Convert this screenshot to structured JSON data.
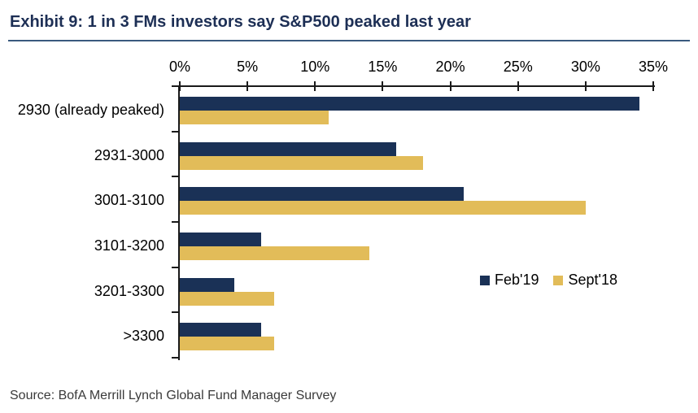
{
  "title": "Exhibit 9: 1 in 3 FMs investors say S&P500 peaked last year",
  "source": "Source: BofA Merrill Lynch Global Fund Manager Survey",
  "colors": {
    "feb19_navy": "#1A3156",
    "sept18_gold": "#E2BC59",
    "title_navy": "#1D2F55",
    "title_rule_blue": "#3A5A7E",
    "axis_black": "#1A1A1A"
  },
  "chart_data": {
    "type": "bar",
    "orientation": "horizontal",
    "title": "Exhibit 9: 1 in 3 FMs investors say S&P500 peaked last year",
    "categories": [
      "2930 (already peaked)",
      "2931-3000",
      "3001-3100",
      "3101-3200",
      "3201-3300",
      ">3300"
    ],
    "series": [
      {
        "name": "Feb'19",
        "color": "#1A3156",
        "values": [
          34,
          16,
          21,
          6,
          4,
          6
        ]
      },
      {
        "name": "Sept'18",
        "color": "#E2BC59",
        "values": [
          11,
          18,
          30,
          14,
          7,
          7
        ]
      }
    ],
    "x_axis": {
      "position": "top",
      "unit": "%",
      "min": 0,
      "max": 35,
      "ticks": [
        0,
        5,
        10,
        15,
        20,
        25,
        30,
        35
      ],
      "tick_labels": [
        "0%",
        "5%",
        "10%",
        "15%",
        "20%",
        "25%",
        "30%",
        "35%"
      ]
    },
    "grid": false,
    "legend": {
      "position": "inside-right",
      "entries": [
        "Feb'19",
        "Sept'18"
      ]
    }
  }
}
